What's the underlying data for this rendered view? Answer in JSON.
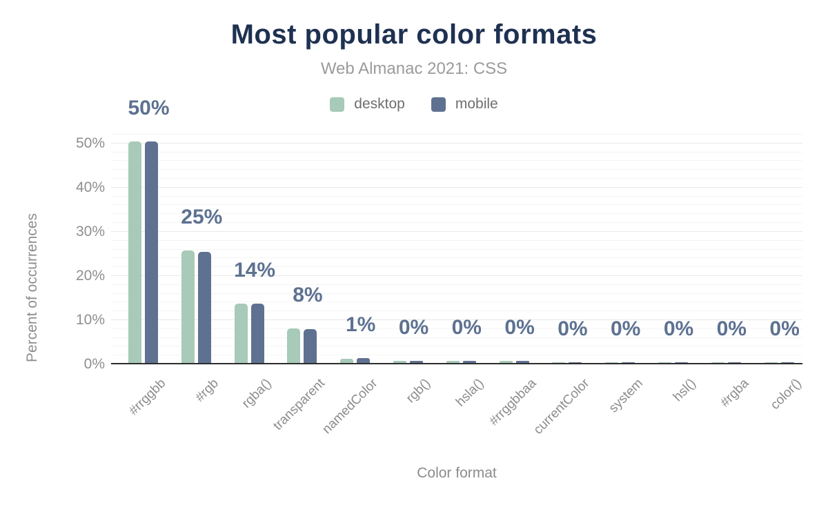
{
  "header": {
    "title": "Most popular color formats",
    "subtitle": "Web Almanac 2021: CSS"
  },
  "chart_data": {
    "type": "bar",
    "title": "Most popular color formats",
    "subtitle": "Web Almanac 2021: CSS",
    "xlabel": "Color format",
    "ylabel": "Percent of occurrences",
    "legend_position": "top",
    "categories": [
      "#rrggbb",
      "#rgb",
      "rgba()",
      "transparent",
      "namedColor",
      "rgb()",
      "hsla()",
      "#rrggbbaa",
      "currentColor",
      "system",
      "hsl()",
      "#rgba",
      "color()"
    ],
    "series": [
      {
        "name": "desktop",
        "color": "#a8cab8",
        "values": [
          50.2,
          25.4,
          13.5,
          7.8,
          1.0,
          0.4,
          0.4,
          0.4,
          0.2,
          0.1,
          0.1,
          0.1,
          0.05
        ]
      },
      {
        "name": "mobile",
        "color": "#5f7191",
        "values": [
          50.1,
          25.1,
          13.5,
          7.7,
          1.1,
          0.5,
          0.5,
          0.5,
          0.2,
          0.1,
          0.1,
          0.1,
          0.05
        ]
      }
    ],
    "bar_labels": [
      "50%",
      "25%",
      "14%",
      "8%",
      "1%",
      "0%",
      "0%",
      "0%",
      "0%",
      "0%",
      "0%",
      "0%",
      "0%"
    ],
    "y_ticks": [
      {
        "value": 0,
        "label": "0%"
      },
      {
        "value": 10,
        "label": "10%"
      },
      {
        "value": 20,
        "label": "20%"
      },
      {
        "value": 30,
        "label": "30%"
      },
      {
        "value": 40,
        "label": "40%"
      },
      {
        "value": 50,
        "label": "50%"
      }
    ],
    "ylim": [
      0,
      52
    ],
    "minor_grid_step": 2,
    "major_grid_step": 10,
    "grid": "horizontal"
  },
  "colors": {
    "title": "#1e3151",
    "subtitle_text": "#9b9b9b",
    "axis_text": "#8e8e8e",
    "bar_label_text": "#5d7191",
    "axis_line": "#2d2d2d",
    "minor_gridline": "#f4f4f4",
    "major_gridline": "#e8e8e8",
    "desktop": "#a8cab8",
    "mobile": "#5f7191"
  }
}
